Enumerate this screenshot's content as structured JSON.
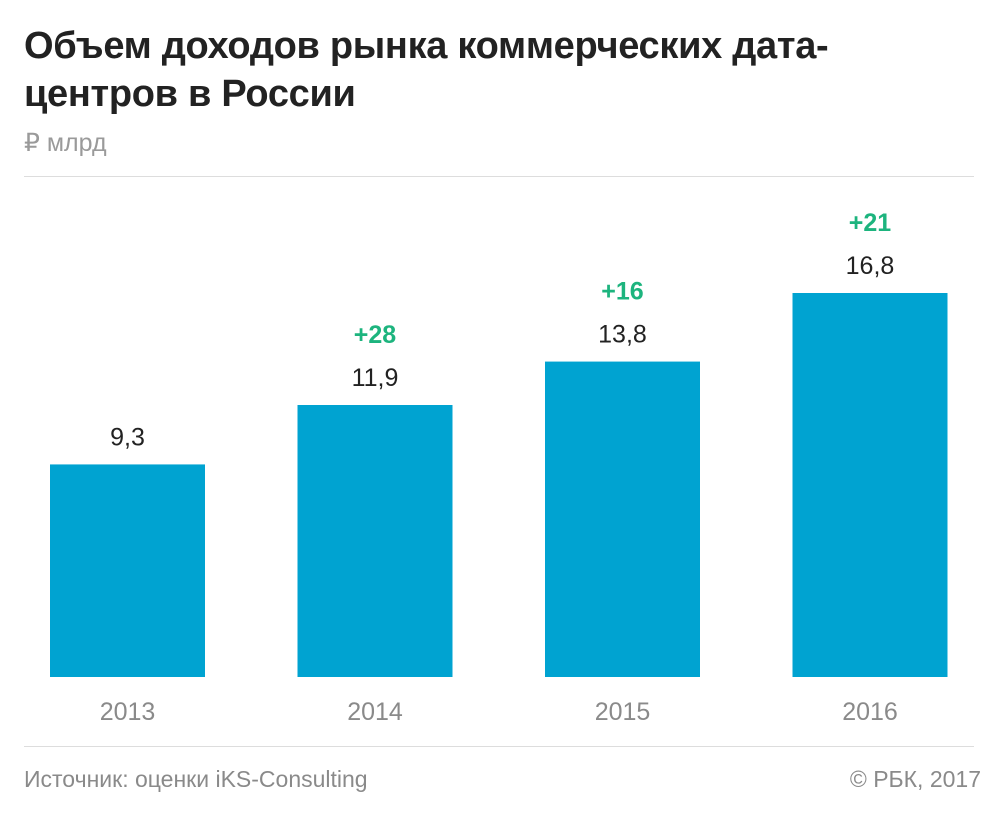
{
  "header": {
    "title": "Объем доходов рынка коммерческих дата-центров в России",
    "unit": "₽ млрд"
  },
  "footer": {
    "source": "Источник: оценки iKS-Consulting",
    "copyright": "© РБК, 2017"
  },
  "colors": {
    "bar": "#00A3D1",
    "growth": "#1DB47E",
    "value_text": "#222222",
    "axis_text": "#8a8a8a"
  },
  "chart_data": {
    "type": "bar",
    "title": "Объем доходов рынка коммерческих дата-центров в России",
    "ylabel": "₽ млрд",
    "categories": [
      "2013",
      "2014",
      "2015",
      "2016"
    ],
    "values": [
      9.3,
      11.9,
      13.8,
      16.8
    ],
    "value_labels": [
      "9,3",
      "11,9",
      "13,8",
      "16,8"
    ],
    "growth_labels": [
      "",
      "+28",
      "+16",
      "+21"
    ],
    "ylim": [
      0,
      16.8
    ],
    "grid": false,
    "legend": "none"
  }
}
